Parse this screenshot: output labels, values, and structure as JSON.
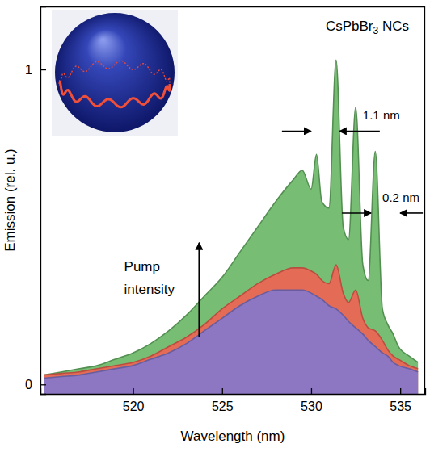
{
  "chart_data": {
    "type": "area",
    "title": "CsPbBr3 NCs",
    "x_label": "Wavelength (nm)",
    "y_label": "Emission (rel. u.)",
    "x": [
      515,
      516,
      517,
      518,
      519,
      520,
      521,
      522,
      523,
      524,
      525,
      526,
      527,
      528,
      529,
      529.5,
      530,
      530.3,
      530.6,
      531,
      531.4,
      531.8,
      532.1,
      532.5,
      532.9,
      533.2,
      533.6,
      534,
      534.3,
      534.6,
      534.9,
      535.5,
      536
    ],
    "series": [
      {
        "color": "#6bb868",
        "values": [
          0.03,
          0.04,
          0.05,
          0.06,
          0.08,
          0.1,
          0.13,
          0.17,
          0.22,
          0.28,
          0.34,
          0.42,
          0.5,
          0.58,
          0.65,
          0.68,
          0.62,
          0.73,
          0.58,
          0.56,
          1.03,
          0.5,
          0.46,
          0.88,
          0.38,
          0.33,
          0.74,
          0.24,
          0.19,
          0.16,
          0.12,
          0.09,
          0.07
        ]
      },
      {
        "color": "#ee6452",
        "values": [
          0.03,
          0.035,
          0.04,
          0.05,
          0.06,
          0.07,
          0.09,
          0.12,
          0.15,
          0.19,
          0.24,
          0.28,
          0.32,
          0.35,
          0.37,
          0.37,
          0.36,
          0.35,
          0.33,
          0.32,
          0.38,
          0.29,
          0.26,
          0.3,
          0.21,
          0.18,
          0.17,
          0.14,
          0.11,
          0.09,
          0.08,
          0.06,
          0.05
        ]
      },
      {
        "color": "#8677cc",
        "values": [
          0.02,
          0.025,
          0.03,
          0.04,
          0.05,
          0.06,
          0.08,
          0.1,
          0.13,
          0.17,
          0.21,
          0.25,
          0.28,
          0.3,
          0.3,
          0.3,
          0.29,
          0.28,
          0.27,
          0.25,
          0.24,
          0.22,
          0.2,
          0.18,
          0.16,
          0.14,
          0.12,
          0.1,
          0.09,
          0.07,
          0.06,
          0.05,
          0.04
        ]
      }
    ],
    "xlim": [
      514.8,
      536.4
    ],
    "ylim": [
      -0.03,
      1.2
    ],
    "xticks": [
      520,
      525,
      530,
      535
    ],
    "yticks": [
      0,
      1
    ],
    "grid": false,
    "annotations": [
      {
        "text": "1.1 nm",
        "x": 532.9,
        "y": 0.84
      },
      {
        "text": "0.2 nm",
        "x": 534.0,
        "y": 0.58
      },
      {
        "text": "Pump intensity",
        "x": 519.5,
        "y": 0.36
      }
    ]
  }
}
